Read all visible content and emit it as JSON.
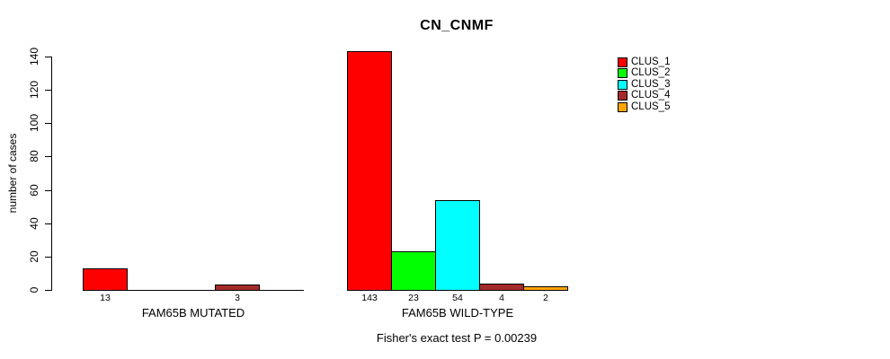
{
  "title": "CN_CNMF",
  "subtitle": "Fisher's exact test P = 0.00239",
  "chart_data": {
    "type": "bar",
    "title": "CN_CNMF",
    "xlabel": "",
    "ylabel": "number of cases",
    "ylim": [
      0,
      140
    ],
    "yticks": [
      0,
      20,
      40,
      60,
      80,
      100,
      120,
      140
    ],
    "grid": false,
    "legend_position": "right",
    "categories": [
      "FAM65B MUTATED",
      "FAM65B WILD-TYPE"
    ],
    "series": [
      {
        "name": "CLUS_1",
        "color": "#FF0000",
        "values": [
          13,
          143
        ]
      },
      {
        "name": "CLUS_2",
        "color": "#00FF00",
        "values": [
          0,
          23
        ]
      },
      {
        "name": "CLUS_3",
        "color": "#00FFFF",
        "values": [
          0,
          54
        ]
      },
      {
        "name": "CLUS_4",
        "color": "#A52A2A",
        "values": [
          3,
          4
        ]
      },
      {
        "name": "CLUS_5",
        "color": "#FFA500",
        "values": [
          0,
          2
        ]
      }
    ],
    "bar_labels": [
      [
        "13",
        "",
        "",
        "3",
        ""
      ],
      [
        "143",
        "23",
        "54",
        "4",
        "2"
      ]
    ],
    "annotation": "Fisher's exact test P = 0.00239"
  }
}
